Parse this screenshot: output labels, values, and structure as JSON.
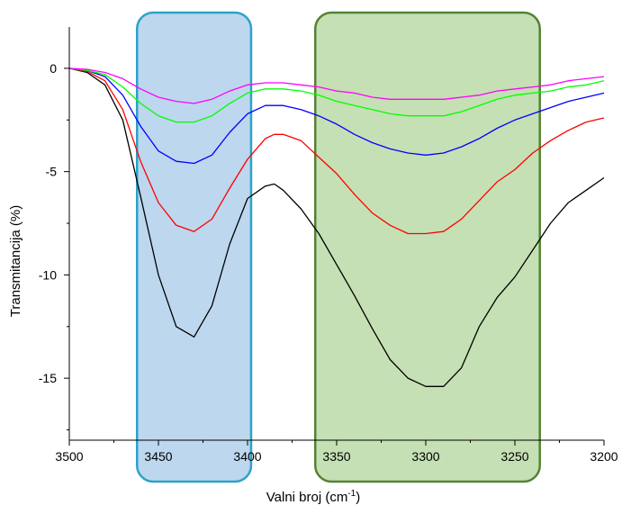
{
  "chart_data": {
    "type": "line",
    "title": "",
    "xlabel": "Valni broj (cm",
    "xlabel_sup": "-1",
    "xlabel_end": ")",
    "ylabel": "Transmitancija (%)",
    "xlim": [
      3500,
      3200
    ],
    "ylim": [
      -18,
      2
    ],
    "x_ticks": [
      3500,
      3450,
      3400,
      3350,
      3300,
      3250,
      3200
    ],
    "y_ticks": [
      0,
      -5,
      -10,
      -15
    ],
    "grid": false,
    "legend": "none",
    "highlights": [
      {
        "name": "band-1",
        "x_range": [
          3462,
          3398
        ],
        "fill": "#bdd7ee",
        "stroke": "#2aa3c9"
      },
      {
        "name": "band-2",
        "x_range": [
          3362,
          3236
        ],
        "fill": "#c5e0b4",
        "stroke": "#548235"
      }
    ],
    "series": [
      {
        "color": "#000000",
        "points": [
          [
            3500,
            0
          ],
          [
            3490,
            -0.2
          ],
          [
            3480,
            -0.8
          ],
          [
            3470,
            -2.5
          ],
          [
            3460,
            -6.2
          ],
          [
            3450,
            -10.0
          ],
          [
            3440,
            -12.5
          ],
          [
            3430,
            -13.0
          ],
          [
            3420,
            -11.5
          ],
          [
            3410,
            -8.5
          ],
          [
            3400,
            -6.3
          ],
          [
            3390,
            -5.7
          ],
          [
            3385,
            -5.6
          ],
          [
            3380,
            -5.9
          ],
          [
            3370,
            -6.8
          ],
          [
            3360,
            -8.0
          ],
          [
            3350,
            -9.5
          ],
          [
            3340,
            -11.0
          ],
          [
            3330,
            -12.6
          ],
          [
            3320,
            -14.1
          ],
          [
            3310,
            -15.0
          ],
          [
            3300,
            -15.4
          ],
          [
            3290,
            -15.4
          ],
          [
            3280,
            -14.5
          ],
          [
            3270,
            -12.5
          ],
          [
            3260,
            -11.1
          ],
          [
            3250,
            -10.1
          ],
          [
            3240,
            -8.8
          ],
          [
            3230,
            -7.5
          ],
          [
            3220,
            -6.5
          ],
          [
            3210,
            -5.9
          ],
          [
            3200,
            -5.3
          ]
        ]
      },
      {
        "color": "#ff0000",
        "points": [
          [
            3500,
            0
          ],
          [
            3490,
            -0.15
          ],
          [
            3480,
            -0.6
          ],
          [
            3470,
            -2.0
          ],
          [
            3460,
            -4.5
          ],
          [
            3450,
            -6.5
          ],
          [
            3440,
            -7.6
          ],
          [
            3430,
            -7.9
          ],
          [
            3420,
            -7.3
          ],
          [
            3410,
            -5.8
          ],
          [
            3400,
            -4.4
          ],
          [
            3390,
            -3.4
          ],
          [
            3385,
            -3.2
          ],
          [
            3380,
            -3.2
          ],
          [
            3370,
            -3.5
          ],
          [
            3360,
            -4.3
          ],
          [
            3350,
            -5.1
          ],
          [
            3340,
            -6.1
          ],
          [
            3330,
            -7.0
          ],
          [
            3320,
            -7.6
          ],
          [
            3310,
            -8.0
          ],
          [
            3300,
            -8.0
          ],
          [
            3290,
            -7.9
          ],
          [
            3280,
            -7.3
          ],
          [
            3270,
            -6.4
          ],
          [
            3260,
            -5.5
          ],
          [
            3250,
            -4.9
          ],
          [
            3240,
            -4.1
          ],
          [
            3230,
            -3.5
          ],
          [
            3220,
            -3.0
          ],
          [
            3210,
            -2.6
          ],
          [
            3200,
            -2.4
          ]
        ]
      },
      {
        "color": "#0000ff",
        "points": [
          [
            3500,
            0
          ],
          [
            3490,
            -0.1
          ],
          [
            3480,
            -0.4
          ],
          [
            3470,
            -1.3
          ],
          [
            3460,
            -2.8
          ],
          [
            3450,
            -4.0
          ],
          [
            3440,
            -4.5
          ],
          [
            3430,
            -4.6
          ],
          [
            3420,
            -4.2
          ],
          [
            3410,
            -3.1
          ],
          [
            3400,
            -2.2
          ],
          [
            3390,
            -1.8
          ],
          [
            3385,
            -1.8
          ],
          [
            3380,
            -1.8
          ],
          [
            3370,
            -2.0
          ],
          [
            3360,
            -2.3
          ],
          [
            3350,
            -2.7
          ],
          [
            3340,
            -3.2
          ],
          [
            3330,
            -3.6
          ],
          [
            3320,
            -3.9
          ],
          [
            3310,
            -4.1
          ],
          [
            3300,
            -4.2
          ],
          [
            3290,
            -4.1
          ],
          [
            3280,
            -3.8
          ],
          [
            3270,
            -3.4
          ],
          [
            3260,
            -2.9
          ],
          [
            3250,
            -2.5
          ],
          [
            3240,
            -2.2
          ],
          [
            3230,
            -1.9
          ],
          [
            3220,
            -1.6
          ],
          [
            3210,
            -1.4
          ],
          [
            3200,
            -1.2
          ]
        ]
      },
      {
        "color": "#00ff00",
        "points": [
          [
            3500,
            0
          ],
          [
            3490,
            -0.1
          ],
          [
            3480,
            -0.3
          ],
          [
            3470,
            -0.9
          ],
          [
            3460,
            -1.7
          ],
          [
            3450,
            -2.3
          ],
          [
            3440,
            -2.6
          ],
          [
            3430,
            -2.6
          ],
          [
            3420,
            -2.3
          ],
          [
            3410,
            -1.7
          ],
          [
            3400,
            -1.2
          ],
          [
            3390,
            -1.0
          ],
          [
            3380,
            -1.0
          ],
          [
            3370,
            -1.1
          ],
          [
            3360,
            -1.3
          ],
          [
            3350,
            -1.6
          ],
          [
            3340,
            -1.8
          ],
          [
            3330,
            -2.0
          ],
          [
            3320,
            -2.2
          ],
          [
            3310,
            -2.3
          ],
          [
            3300,
            -2.3
          ],
          [
            3290,
            -2.3
          ],
          [
            3280,
            -2.1
          ],
          [
            3270,
            -1.8
          ],
          [
            3260,
            -1.5
          ],
          [
            3250,
            -1.3
          ],
          [
            3240,
            -1.2
          ],
          [
            3230,
            -1.1
          ],
          [
            3220,
            -0.9
          ],
          [
            3210,
            -0.8
          ],
          [
            3200,
            -0.6
          ]
        ]
      },
      {
        "color": "#ff00ff",
        "points": [
          [
            3500,
            0
          ],
          [
            3490,
            -0.05
          ],
          [
            3480,
            -0.2
          ],
          [
            3470,
            -0.5
          ],
          [
            3460,
            -1.0
          ],
          [
            3450,
            -1.4
          ],
          [
            3440,
            -1.6
          ],
          [
            3430,
            -1.7
          ],
          [
            3420,
            -1.5
          ],
          [
            3410,
            -1.1
          ],
          [
            3400,
            -0.8
          ],
          [
            3390,
            -0.7
          ],
          [
            3380,
            -0.7
          ],
          [
            3370,
            -0.8
          ],
          [
            3360,
            -0.9
          ],
          [
            3350,
            -1.1
          ],
          [
            3340,
            -1.2
          ],
          [
            3330,
            -1.4
          ],
          [
            3320,
            -1.5
          ],
          [
            3310,
            -1.5
          ],
          [
            3300,
            -1.5
          ],
          [
            3290,
            -1.5
          ],
          [
            3280,
            -1.4
          ],
          [
            3270,
            -1.3
          ],
          [
            3260,
            -1.1
          ],
          [
            3250,
            -1.0
          ],
          [
            3240,
            -0.9
          ],
          [
            3230,
            -0.8
          ],
          [
            3220,
            -0.6
          ],
          [
            3210,
            -0.5
          ],
          [
            3200,
            -0.4
          ]
        ]
      }
    ]
  }
}
